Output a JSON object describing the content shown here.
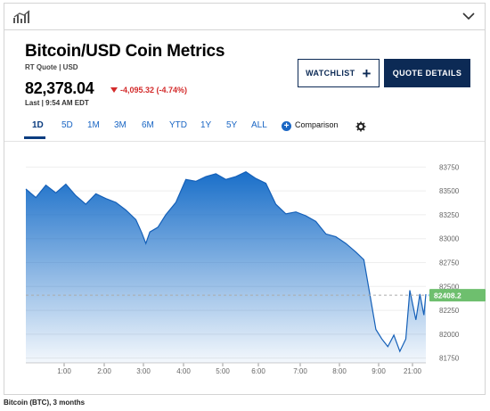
{
  "topbar": {
    "left_icon": "line-chart-icon",
    "right_icon": "chevron-down-icon"
  },
  "header": {
    "title": "Bitcoin/USD Coin Metrics",
    "subtitle": "RT Quote | USD",
    "price": "82,378.04",
    "change": "-4,095.32 (-4.74%)",
    "change_color": "#d32b2b",
    "last": "Last | 9:54 AM EDT"
  },
  "buttons": {
    "watchlist": "WATCHLIST",
    "watchlist_icon": "plus-icon",
    "quote_details": "QUOTE DETAILS",
    "brand_color": "#0c2a55"
  },
  "ranges": {
    "items": [
      "1D",
      "5D",
      "1M",
      "3M",
      "6M",
      "YTD",
      "1Y",
      "5Y",
      "ALL"
    ],
    "active": "1D",
    "comparison": "Comparison",
    "settings_icon": "gear-icon"
  },
  "chart_data": {
    "type": "area",
    "current_value": "82408.2",
    "y_ticks": [
      "83750",
      "83500",
      "83250",
      "83000",
      "82750",
      "82500",
      "82250",
      "82000",
      "81750"
    ],
    "x_ticks": [
      "1:00",
      "2:00",
      "3:00",
      "4:00",
      "5:00",
      "6:00",
      "7:00",
      "8:00",
      "9:00",
      "21:00"
    ],
    "ylim": [
      81700,
      83800
    ],
    "fill_color": "#1a6fc9",
    "label_color": "#6ebf6e",
    "series": [
      {
        "values": [
          [
            0.0,
            83520
          ],
          [
            0.25,
            83430
          ],
          [
            0.5,
            83560
          ],
          [
            0.75,
            83480
          ],
          [
            1.0,
            83570
          ],
          [
            1.25,
            83450
          ],
          [
            1.5,
            83360
          ],
          [
            1.75,
            83470
          ],
          [
            2.0,
            83420
          ],
          [
            2.25,
            83380
          ],
          [
            2.5,
            83300
          ],
          [
            2.75,
            83200
          ],
          [
            2.9,
            83060
          ],
          [
            3.0,
            82950
          ],
          [
            3.1,
            83070
          ],
          [
            3.3,
            83120
          ],
          [
            3.5,
            83250
          ],
          [
            3.75,
            83380
          ],
          [
            4.0,
            83620
          ],
          [
            4.25,
            83600
          ],
          [
            4.5,
            83650
          ],
          [
            4.75,
            83680
          ],
          [
            5.0,
            83620
          ],
          [
            5.25,
            83650
          ],
          [
            5.5,
            83700
          ],
          [
            5.75,
            83630
          ],
          [
            6.0,
            83580
          ],
          [
            6.25,
            83360
          ],
          [
            6.5,
            83260
          ],
          [
            6.75,
            83280
          ],
          [
            7.0,
            83240
          ],
          [
            7.25,
            83180
          ],
          [
            7.5,
            83050
          ],
          [
            7.75,
            83020
          ],
          [
            8.0,
            82950
          ],
          [
            8.25,
            82860
          ],
          [
            8.45,
            82780
          ],
          [
            8.6,
            82420
          ],
          [
            8.75,
            82050
          ],
          [
            8.9,
            81950
          ],
          [
            9.05,
            81870
          ],
          [
            9.2,
            81990
          ],
          [
            9.35,
            81820
          ],
          [
            9.5,
            81950
          ],
          [
            9.6,
            82460
          ],
          [
            9.75,
            82150
          ],
          [
            9.85,
            82420
          ],
          [
            9.95,
            82200
          ],
          [
            10.0,
            82420
          ]
        ]
      }
    ]
  },
  "footer": "Bitcoin (BTC), 3 months"
}
